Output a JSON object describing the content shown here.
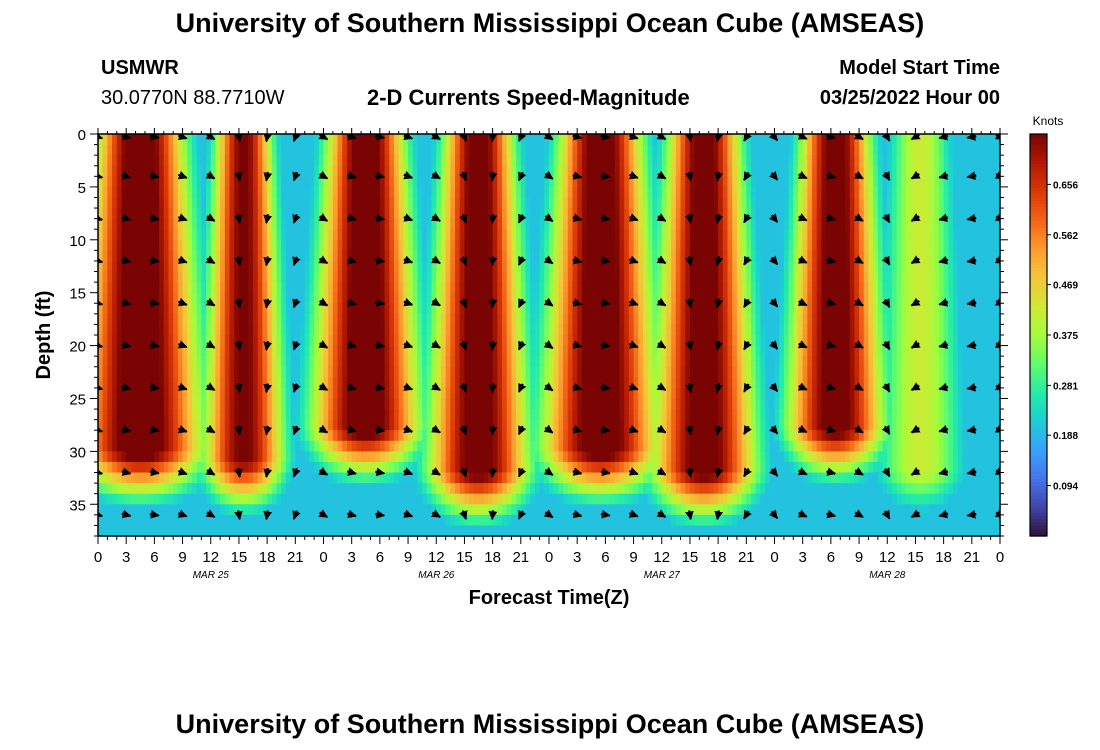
{
  "header": {
    "title": "University of Southern Mississippi Ocean Cube (AMSEAS)",
    "station": "USMWR",
    "coords": "30.0770N  88.7710W",
    "plot_title": "2-D Currents Speed-Magnitude",
    "model_start_label": "Model Start Time",
    "model_start_value": "03/25/2022 Hour 00"
  },
  "footer": {
    "title": "University of Southern Mississippi Ocean Cube (AMSEAS)"
  },
  "colors": {
    "scale": [
      "#30123b",
      "#4145ab",
      "#4675ed",
      "#39a2fc",
      "#1bcfd4",
      "#24eca6",
      "#61fc6c",
      "#a4fc3b",
      "#d1e834",
      "#f3c63a",
      "#fe9b2d",
      "#f36315",
      "#d93806",
      "#b11901",
      "#7a0403"
    ]
  },
  "chart_data": {
    "type": "heatmap",
    "title": "2-D Currents Speed-Magnitude",
    "xlabel": "Forecast Time(Z)",
    "ylabel": "Depth (ft)",
    "x_tick_labels": [
      "0",
      "3",
      "6",
      "9",
      "12",
      "15",
      "18",
      "21",
      "0",
      "3",
      "6",
      "9",
      "12",
      "15",
      "18",
      "21",
      "0",
      "3",
      "6",
      "9",
      "12",
      "15",
      "18",
      "21",
      "0",
      "3",
      "6",
      "9",
      "12",
      "15",
      "18",
      "21",
      "0"
    ],
    "date_labels": [
      {
        "label": "MAR 25",
        "hour": 12
      },
      {
        "label": "MAR 26",
        "hour": 36
      },
      {
        "label": "MAR 27",
        "hour": 60
      },
      {
        "label": "MAR 28",
        "hour": 84
      }
    ],
    "xlim_hours": [
      0,
      96
    ],
    "ylim_ft": [
      0,
      38
    ],
    "y_ticks": [
      0,
      5,
      10,
      15,
      20,
      25,
      30,
      35
    ],
    "y_reversed": true,
    "colorbar": {
      "label": "Knots",
      "ticks": [
        0.094,
        0.188,
        0.281,
        0.375,
        0.469,
        0.562,
        0.656
      ],
      "range": [
        0.0,
        0.75
      ]
    },
    "speed_peaks": [
      {
        "center_hour": 4.5,
        "width": 3.4,
        "max": 0.75,
        "bottom_ft": 30
      },
      {
        "center_hour": 15.5,
        "width": 2.2,
        "max": 0.68,
        "bottom_ft": 31
      },
      {
        "center_hour": 28.5,
        "width": 3.0,
        "max": 0.74,
        "bottom_ft": 28
      },
      {
        "center_hour": 40.5,
        "width": 2.7,
        "max": 0.72,
        "bottom_ft": 32
      },
      {
        "center_hour": 53.5,
        "width": 3.2,
        "max": 0.74,
        "bottom_ft": 30
      },
      {
        "center_hour": 64.5,
        "width": 2.8,
        "max": 0.72,
        "bottom_ft": 32
      },
      {
        "center_hour": 78.5,
        "width": 2.7,
        "max": 0.72,
        "bottom_ft": 28
      },
      {
        "center_hour": 87.5,
        "width": 2.5,
        "max": 0.34,
        "bottom_ft": 32
      }
    ],
    "background_speed": 0.2,
    "vector_depths_ft": [
      0,
      4,
      8,
      12,
      16,
      20,
      24,
      28,
      32,
      36
    ],
    "vector_hours": [
      0,
      3,
      6,
      9,
      12,
      15,
      18,
      21,
      24,
      27,
      30,
      33,
      36,
      39,
      42,
      45,
      48,
      51,
      54,
      57,
      60,
      63,
      66,
      69,
      72,
      75,
      78,
      81,
      84,
      87,
      90,
      93,
      96
    ],
    "vector_directions_deg": [
      -15,
      -15,
      -10,
      -20,
      -30,
      -80,
      -100,
      -110,
      -30,
      -15,
      -10,
      -20,
      -30,
      -70,
      -95,
      -115,
      -35,
      -15,
      -10,
      -20,
      -30,
      -80,
      -100,
      -120,
      -50,
      -25,
      -15,
      -30,
      -60,
      -150,
      -165,
      -170,
      -30
    ]
  }
}
